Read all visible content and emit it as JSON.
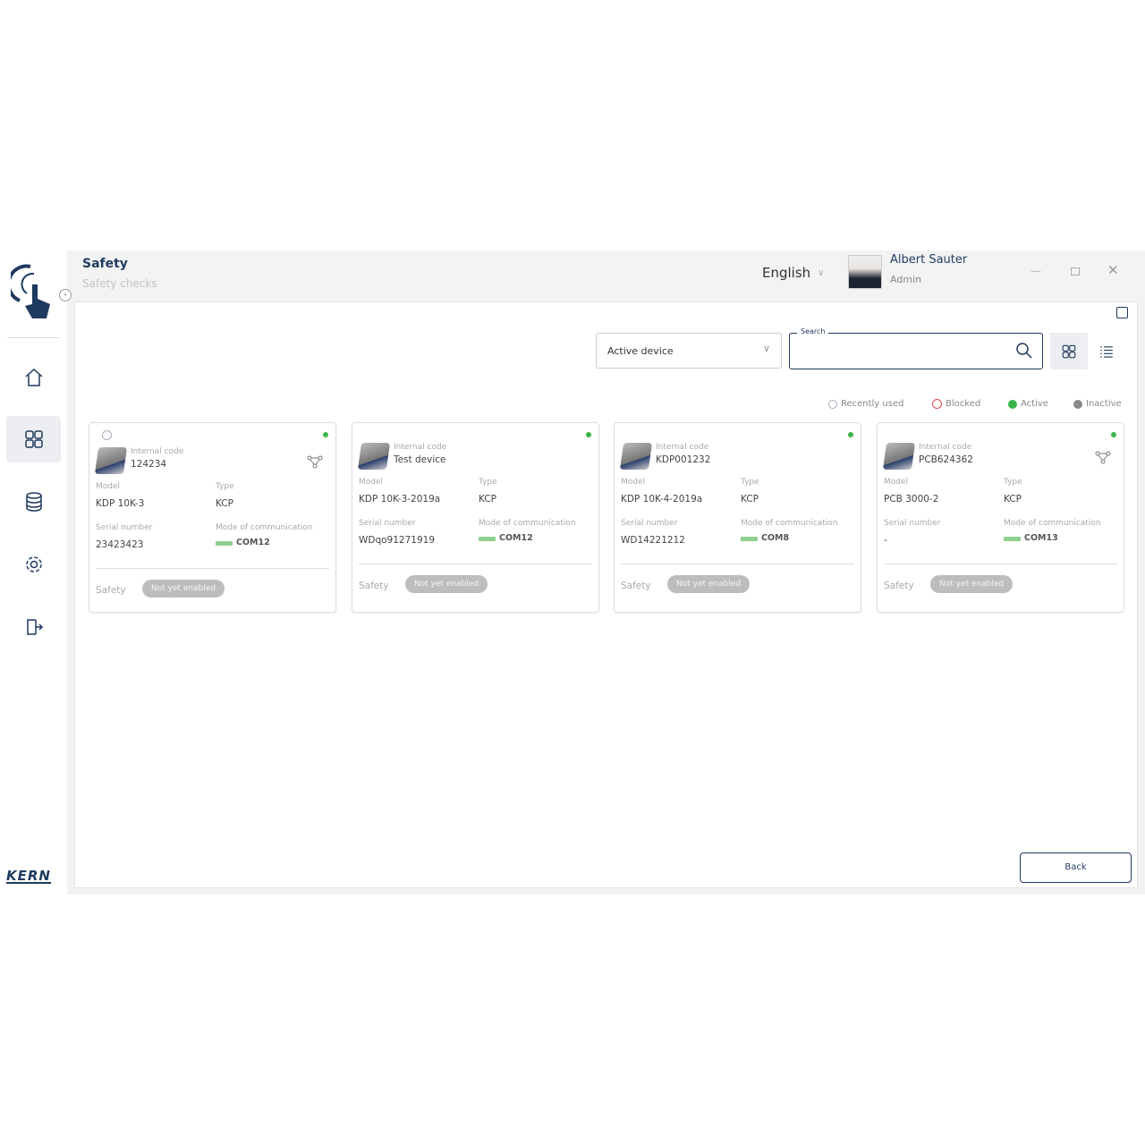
{
  "header": {
    "title": "Safety",
    "subtitle": "Safety checks",
    "language": "English",
    "user_name": "Albert Sauter",
    "user_role": "Admin"
  },
  "sidebar": {
    "brand": "KERN",
    "items": [
      {
        "icon": "home-icon"
      },
      {
        "icon": "grid-icon",
        "active": true
      },
      {
        "icon": "database-icon"
      },
      {
        "icon": "gear-icon"
      },
      {
        "icon": "logout-icon"
      }
    ]
  },
  "toolbar": {
    "filter_value": "Active device",
    "search_label": "Search",
    "search_value": ""
  },
  "legend": {
    "recent": "Recently used",
    "blocked": "Blocked",
    "active": "Active",
    "inactive": "Inactive"
  },
  "colors": {
    "active": "#3bb54a",
    "blocked": "#e0474c",
    "inactive": "#8a8a8a",
    "brand": "#1f3a5f"
  },
  "labels": {
    "internal_code": "Internal code",
    "model": "Model",
    "type": "Type",
    "serial": "Serial number",
    "comm": "Mode of communication",
    "safety": "Safety"
  },
  "devices": [
    {
      "code": "124234",
      "model": "KDP 10K-3",
      "type": "KCP",
      "serial": "23423423",
      "comm": "COM12",
      "safety": "Not yet enabled",
      "recent": true,
      "network": true
    },
    {
      "code": "Test device",
      "model": "KDP 10K-3-2019a",
      "type": "KCP",
      "serial": "WDqo91271919",
      "comm": "COM12",
      "safety": "Not yet enabled"
    },
    {
      "code": "KDP001232",
      "model": "KDP 10K-4-2019a",
      "type": "KCP",
      "serial": "WD14221212",
      "comm": "COM8",
      "safety": "Not yet enabled"
    },
    {
      "code": "PCB624362",
      "model": "PCB 3000-2",
      "type": "KCP",
      "serial": "-",
      "comm": "COM13",
      "safety": "Not yet enabled",
      "network": true
    }
  ],
  "footer": {
    "back_label": "Back"
  }
}
